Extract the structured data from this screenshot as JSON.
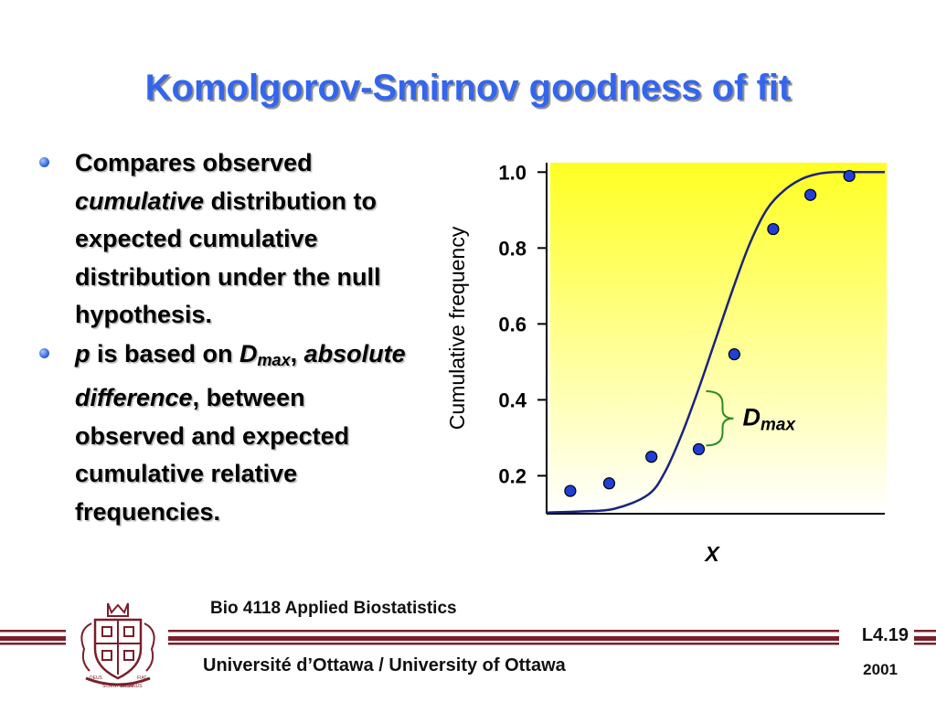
{
  "slide": {
    "title": "Komolgorov-Smirnov goodness of fit",
    "bullets": [
      {
        "parts": [
          {
            "text": "Compares observed ",
            "style": "normal"
          },
          {
            "text": "cumulative",
            "style": "italic"
          },
          {
            "text": " distribution to expected cumulative distribution under the null hypothesis.",
            "style": "normal"
          }
        ]
      },
      {
        "parts": [
          {
            "text": "p",
            "style": "italic"
          },
          {
            "text": " is based on ",
            "style": "normal"
          },
          {
            "text": "D",
            "style": "italic"
          },
          {
            "text": "max",
            "style": "sub-italic"
          },
          {
            "text": ", ",
            "style": "normal"
          },
          {
            "text": "absolute difference",
            "style": "italic"
          },
          {
            "text": ", between observed and expected cumulative relative frequencies.",
            "style": "normal"
          }
        ]
      }
    ]
  },
  "chart_data": {
    "type": "line",
    "xlabel": "X",
    "ylabel": "Cumulative frequency",
    "ylim": [
      0.1,
      1.02
    ],
    "y_ticks": [
      0.2,
      0.4,
      0.6,
      0.8,
      1.0
    ],
    "y_tick_labels": [
      "0.2",
      "0.4",
      "0.6",
      "0.8",
      "1.0"
    ],
    "xlim": [
      0,
      10
    ],
    "series": [
      {
        "kind": "line",
        "x": [
          0,
          1,
          2,
          3,
          3.5,
          4,
          4.5,
          5,
          5.5,
          6,
          6.5,
          7,
          7.5,
          8,
          8.5,
          9,
          9.5,
          10
        ],
        "y": [
          0.103,
          0.106,
          0.113,
          0.15,
          0.21,
          0.31,
          0.43,
          0.56,
          0.69,
          0.81,
          0.9,
          0.95,
          0.98,
          0.995,
          1.0,
          1.0,
          1.0,
          1.0
        ]
      },
      {
        "kind": "points",
        "x": [
          0.7,
          1.85,
          3.1,
          4.5,
          5.55,
          6.7,
          7.8,
          8.95
        ],
        "y": [
          0.16,
          0.18,
          0.25,
          0.27,
          0.52,
          0.85,
          0.94,
          0.99
        ]
      }
    ],
    "annotation": {
      "text_main": "D",
      "text_sub": "max",
      "x": 4.5,
      "y_low": 0.27,
      "y_high": 0.43
    },
    "gradient": {
      "top": "#ffff22",
      "bottom": "#ffffff"
    },
    "colors": {
      "line": "#1a237e",
      "points": "#1f3fd6",
      "brace": "#2e8b22"
    }
  },
  "footer": {
    "course": "Bio 4118 Applied Biostatistics",
    "university": "Université d’Ottawa / University of Ottawa",
    "slide_number": "L4.19",
    "year": "2001",
    "band_color": "#7a1f2b",
    "crest_labels": [
      "DEUS",
      "SCIENTIARUM",
      "DOMINUS",
      "FIAT"
    ]
  }
}
